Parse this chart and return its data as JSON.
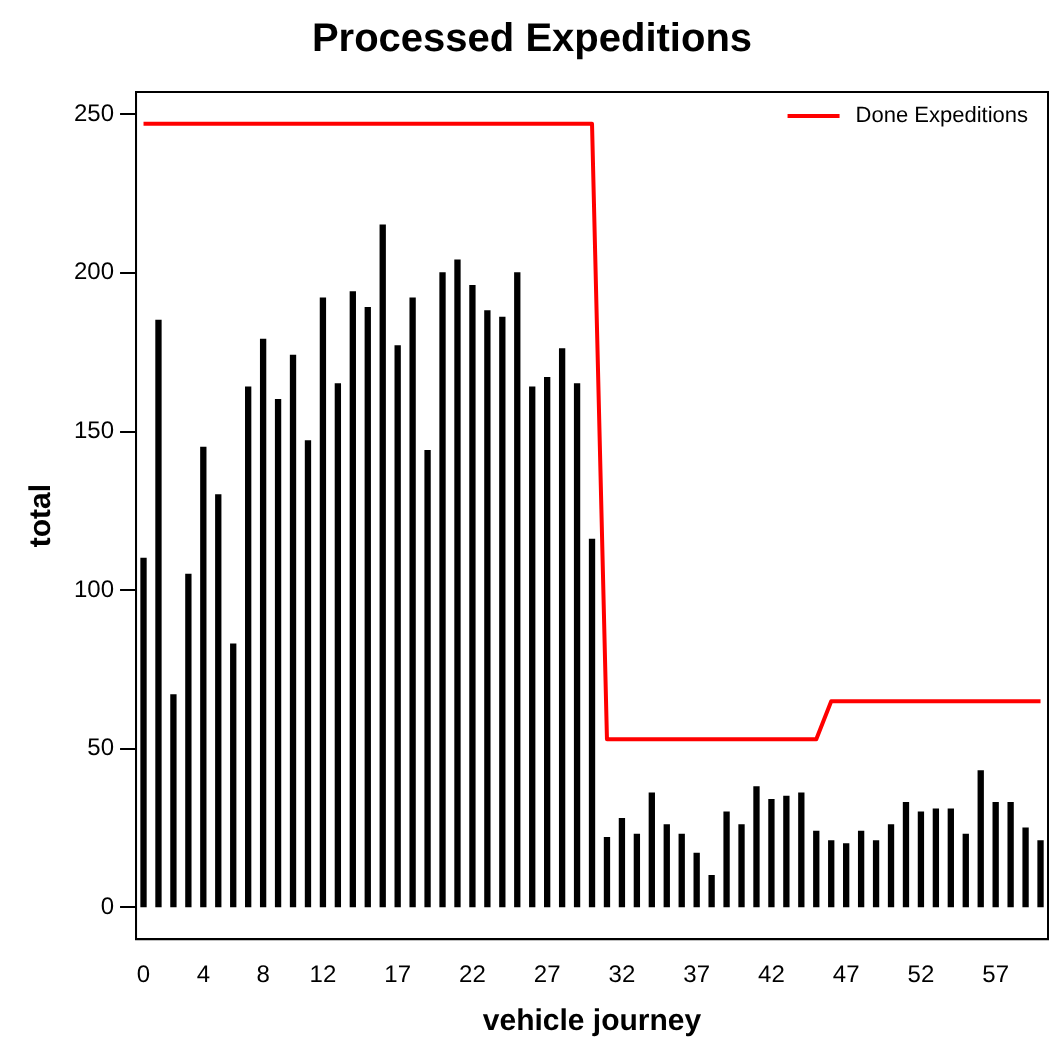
{
  "chart_data": {
    "type": "bar",
    "title": "Processed Expeditions",
    "xlabel": "vehicle journey",
    "ylabel": "total",
    "categories": [
      "0",
      null,
      null,
      null,
      "4",
      null,
      null,
      null,
      "8",
      null,
      null,
      null,
      "12",
      null,
      null,
      null,
      null,
      "17",
      null,
      null,
      null,
      null,
      "22",
      null,
      null,
      null,
      null,
      "27",
      null,
      null,
      null,
      null,
      "32",
      null,
      null,
      null,
      null,
      "37",
      null,
      null,
      null,
      null,
      "42",
      null,
      null,
      null,
      null,
      "47",
      null,
      null,
      null,
      null,
      "52",
      null,
      null,
      null,
      null,
      "57",
      null,
      null,
      null
    ],
    "series": [
      {
        "color": "#000000",
        "values": [
          110,
          185,
          67,
          105,
          145,
          130,
          83,
          164,
          179,
          160,
          174,
          147,
          192,
          165,
          194,
          189,
          215,
          177,
          192,
          144,
          200,
          204,
          196,
          188,
          186,
          200,
          164,
          167,
          176,
          165,
          116,
          22,
          28,
          23,
          36,
          26,
          23,
          17,
          10,
          30,
          26,
          38,
          34,
          35,
          36,
          24,
          21,
          20,
          24,
          21,
          26,
          33,
          30,
          31,
          31,
          23,
          43,
          33,
          33,
          25,
          21
        ]
      },
      {
        "type": "line",
        "name": "Done Expeditions",
        "color": "#ff0000",
        "values": [
          247,
          247,
          247,
          247,
          247,
          247,
          247,
          247,
          247,
          247,
          247,
          247,
          247,
          247,
          247,
          247,
          247,
          247,
          247,
          247,
          247,
          247,
          247,
          247,
          247,
          247,
          247,
          247,
          247,
          247,
          247,
          53,
          53,
          53,
          53,
          53,
          53,
          53,
          53,
          53,
          53,
          53,
          53,
          53,
          53,
          53,
          65,
          65,
          65,
          65,
          65,
          65,
          65,
          65,
          65,
          65,
          65,
          65,
          65,
          65,
          65
        ]
      }
    ],
    "ylim": [
      -10,
      257
    ],
    "yticks": [
      0,
      50,
      100,
      150,
      200,
      250
    ],
    "grid": false,
    "legend": "top right",
    "marker": "none"
  }
}
